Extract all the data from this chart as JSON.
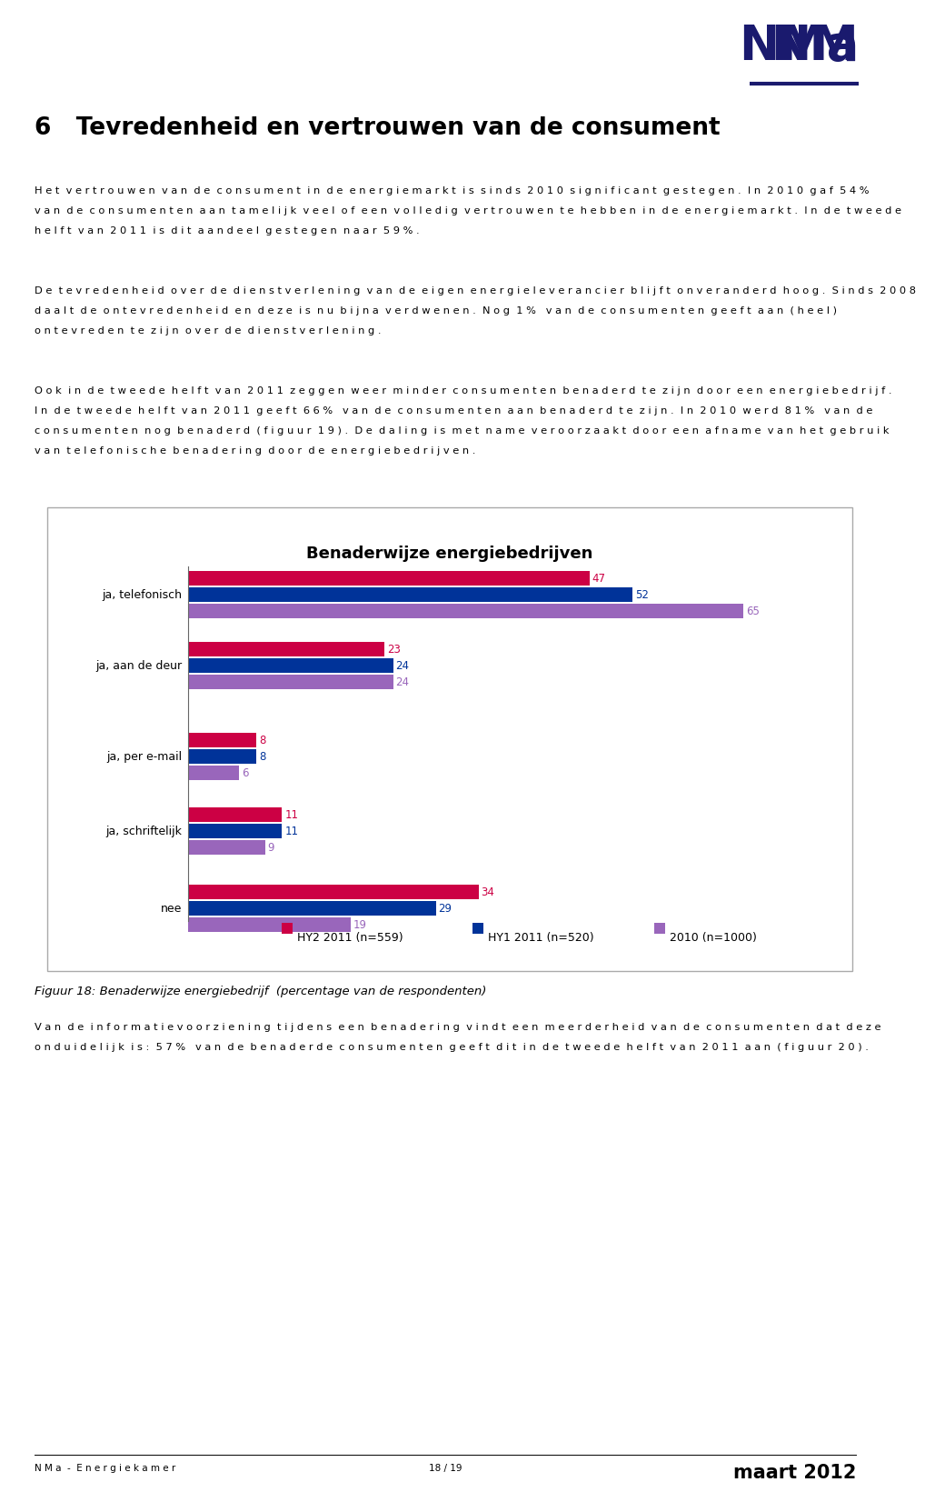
{
  "title": "Benaderwijze energiebedrijven",
  "categories": [
    "ja, telefonisch",
    "ja, aan de deur",
    "ja, per e-mail",
    "ja, schriftelijk",
    "nee"
  ],
  "hy2_2011": [
    47,
    23,
    8,
    11,
    34
  ],
  "hy1_2011": [
    52,
    24,
    8,
    11,
    29
  ],
  "y2010": [
    65,
    24,
    6,
    9,
    19
  ],
  "color_hy2": "#CC0044",
  "color_hy1": "#003399",
  "color_2010": "#9966BB",
  "legend_hy2": "HY2 2011 (n=559)",
  "legend_hy1": "HY1 2011 (n=520)",
  "legend_2010": "2010 (n=1000)",
  "heading": "6   Tevredenheid en vertrouwen van de consument",
  "para1_lines": [
    "H e t  v e r t r o u w e n  v a n  d e  c o n s u m e n t  i n  d e  e n e r g i e m a r k t  i s  s i n d s  2 0 1 0  s i g n i f i c a n t  g e s t e g e n .  I n  2 0 1 0  g a f  5 4 %",
    "v a n  d e  c o n s u m e n t e n  a a n  t a m e l i j k  v e e l  o f  e e n  v o l l e d i g  v e r t r o u w e n  t e  h e b b e n  i n  d e  e n e r g i e m a r k t .  I n  d e  t w e e d e",
    "h e l f t  v a n  2 0 1 1  i s  d i t  a a n d e e l  g e s t e g e n  n a a r  5 9 % ."
  ],
  "para2_lines": [
    "D e  t e v r e d e n h e i d  o v e r  d e  d i e n s t v e r l e n i n g  v a n  d e  e i g e n  e n e r g i e l e v e r a n c i e r  b l i j f t  o n v e r a n d e r d  h o o g .  S i n d s  2 0 0 8",
    "d a a l t  d e  o n t e v r e d e n h e i d  e n  d e z e  i s  n u  b i j n a  v e r d w e n e n .  N o g  1 %   v a n  d e  c o n s u m e n t e n  g e e f t  a a n  ( h e e l )",
    "o n t e v r e d e n  t e  z i j n  o v e r  d e  d i e n s t v e r l e n i n g ."
  ],
  "para3_lines": [
    "O o k  i n  d e  t w e e d e  h e l f t  v a n  2 0 1 1  z e g g e n  w e e r  m i n d e r  c o n s u m e n t e n  b e n a d e r d  t e  z i j n  d o o r  e e n  e n e r g i e b e d r i j f .",
    "I n  d e  t w e e d e  h e l f t  v a n  2 0 1 1  g e e f t  6 6 %   v a n  d e  c o n s u m e n t e n  a a n  b e n a d e r d  t e  z i j n .  I n  2 0 1 0  w e r d  8 1 %   v a n  d e",
    "c o n s u m e n t e n  n o g  b e n a d e r d  ( f i g u u r  1 9 ) .  D e  d a l i n g  i s  m e t  n a m e  v e r o o r z a a k t  d o o r  e e n  a f n a m e  v a n  h e t  g e b r u i k",
    "v a n  t e l e f o n i s c h e  b e n a d e r i n g  d o o r  d e  e n e r g i e b e d r i j v e n ."
  ],
  "fig_caption": "Figuur 18: Benaderwijze energiebedrijf  (percentage van de respondenten)",
  "para4_lines": [
    "V a n  d e  i n f o r m a t i e v o o r z i e n i n g  t i j d e n s  e e n  b e n a d e r i n g  v i n d t  e e n  m e e r d e r h e i d  v a n  d e  c o n s u m e n t e n  d a t  d e z e",
    "o n d u i d e l i j k  i s :  5 7 %   v a n  d e  b e n a d e r d e  c o n s u m e n t e n  g e e f t  d i t  i n  d e  t w e e d e  h e l f t  v a n  2 0 1 1  a a n  ( f i g u u r  2 0 ) ."
  ],
  "footer_left": "N M a  -  E n e r g i e k a m e r",
  "footer_mid": "18 / 19",
  "footer_right": "maart 2012",
  "bg_color": "#ffffff",
  "text_color": "#000000",
  "heading_color": "#000000"
}
